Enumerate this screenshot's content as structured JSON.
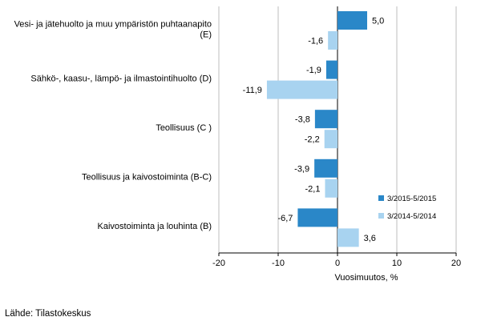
{
  "chart_data": {
    "type": "bar",
    "orientation": "horizontal",
    "categories": [
      [
        "Vesi- ja jätehuolto ja muu ympäristön puhtaanapito",
        "(E)"
      ],
      [
        "Sähkö-, kaasu-, lämpö- ja ilmastointihuolto (D)"
      ],
      [
        "Teollisuus (C )"
      ],
      [
        "Teollisuus ja kaivostoiminta (B-C)"
      ],
      [
        "Kaivostoiminta ja louhinta (B)"
      ]
    ],
    "series": [
      {
        "name": "3/2015-5/2015",
        "color": "#2a87c8",
        "values": [
          5.0,
          -1.9,
          -3.8,
          -3.9,
          -6.7
        ],
        "labels": [
          "5,0",
          "-1,9",
          "-3,8",
          "-3,9",
          "-6,7"
        ]
      },
      {
        "name": "3/2014-5/2014",
        "color": "#a8d3f0",
        "values": [
          -1.6,
          -11.9,
          -2.2,
          -2.1,
          3.6
        ],
        "labels": [
          "-1,6",
          "-11,9",
          "-2,2",
          "-2,1",
          "3,6"
        ]
      }
    ],
    "xlim": [
      -20,
      20
    ],
    "xticks": [
      -20,
      -10,
      0,
      10,
      20
    ],
    "xlabel": "Vuosimuutos, %",
    "grid": "vertical",
    "legend_position": "right"
  },
  "source": "Lähde: Tilastokeskus"
}
